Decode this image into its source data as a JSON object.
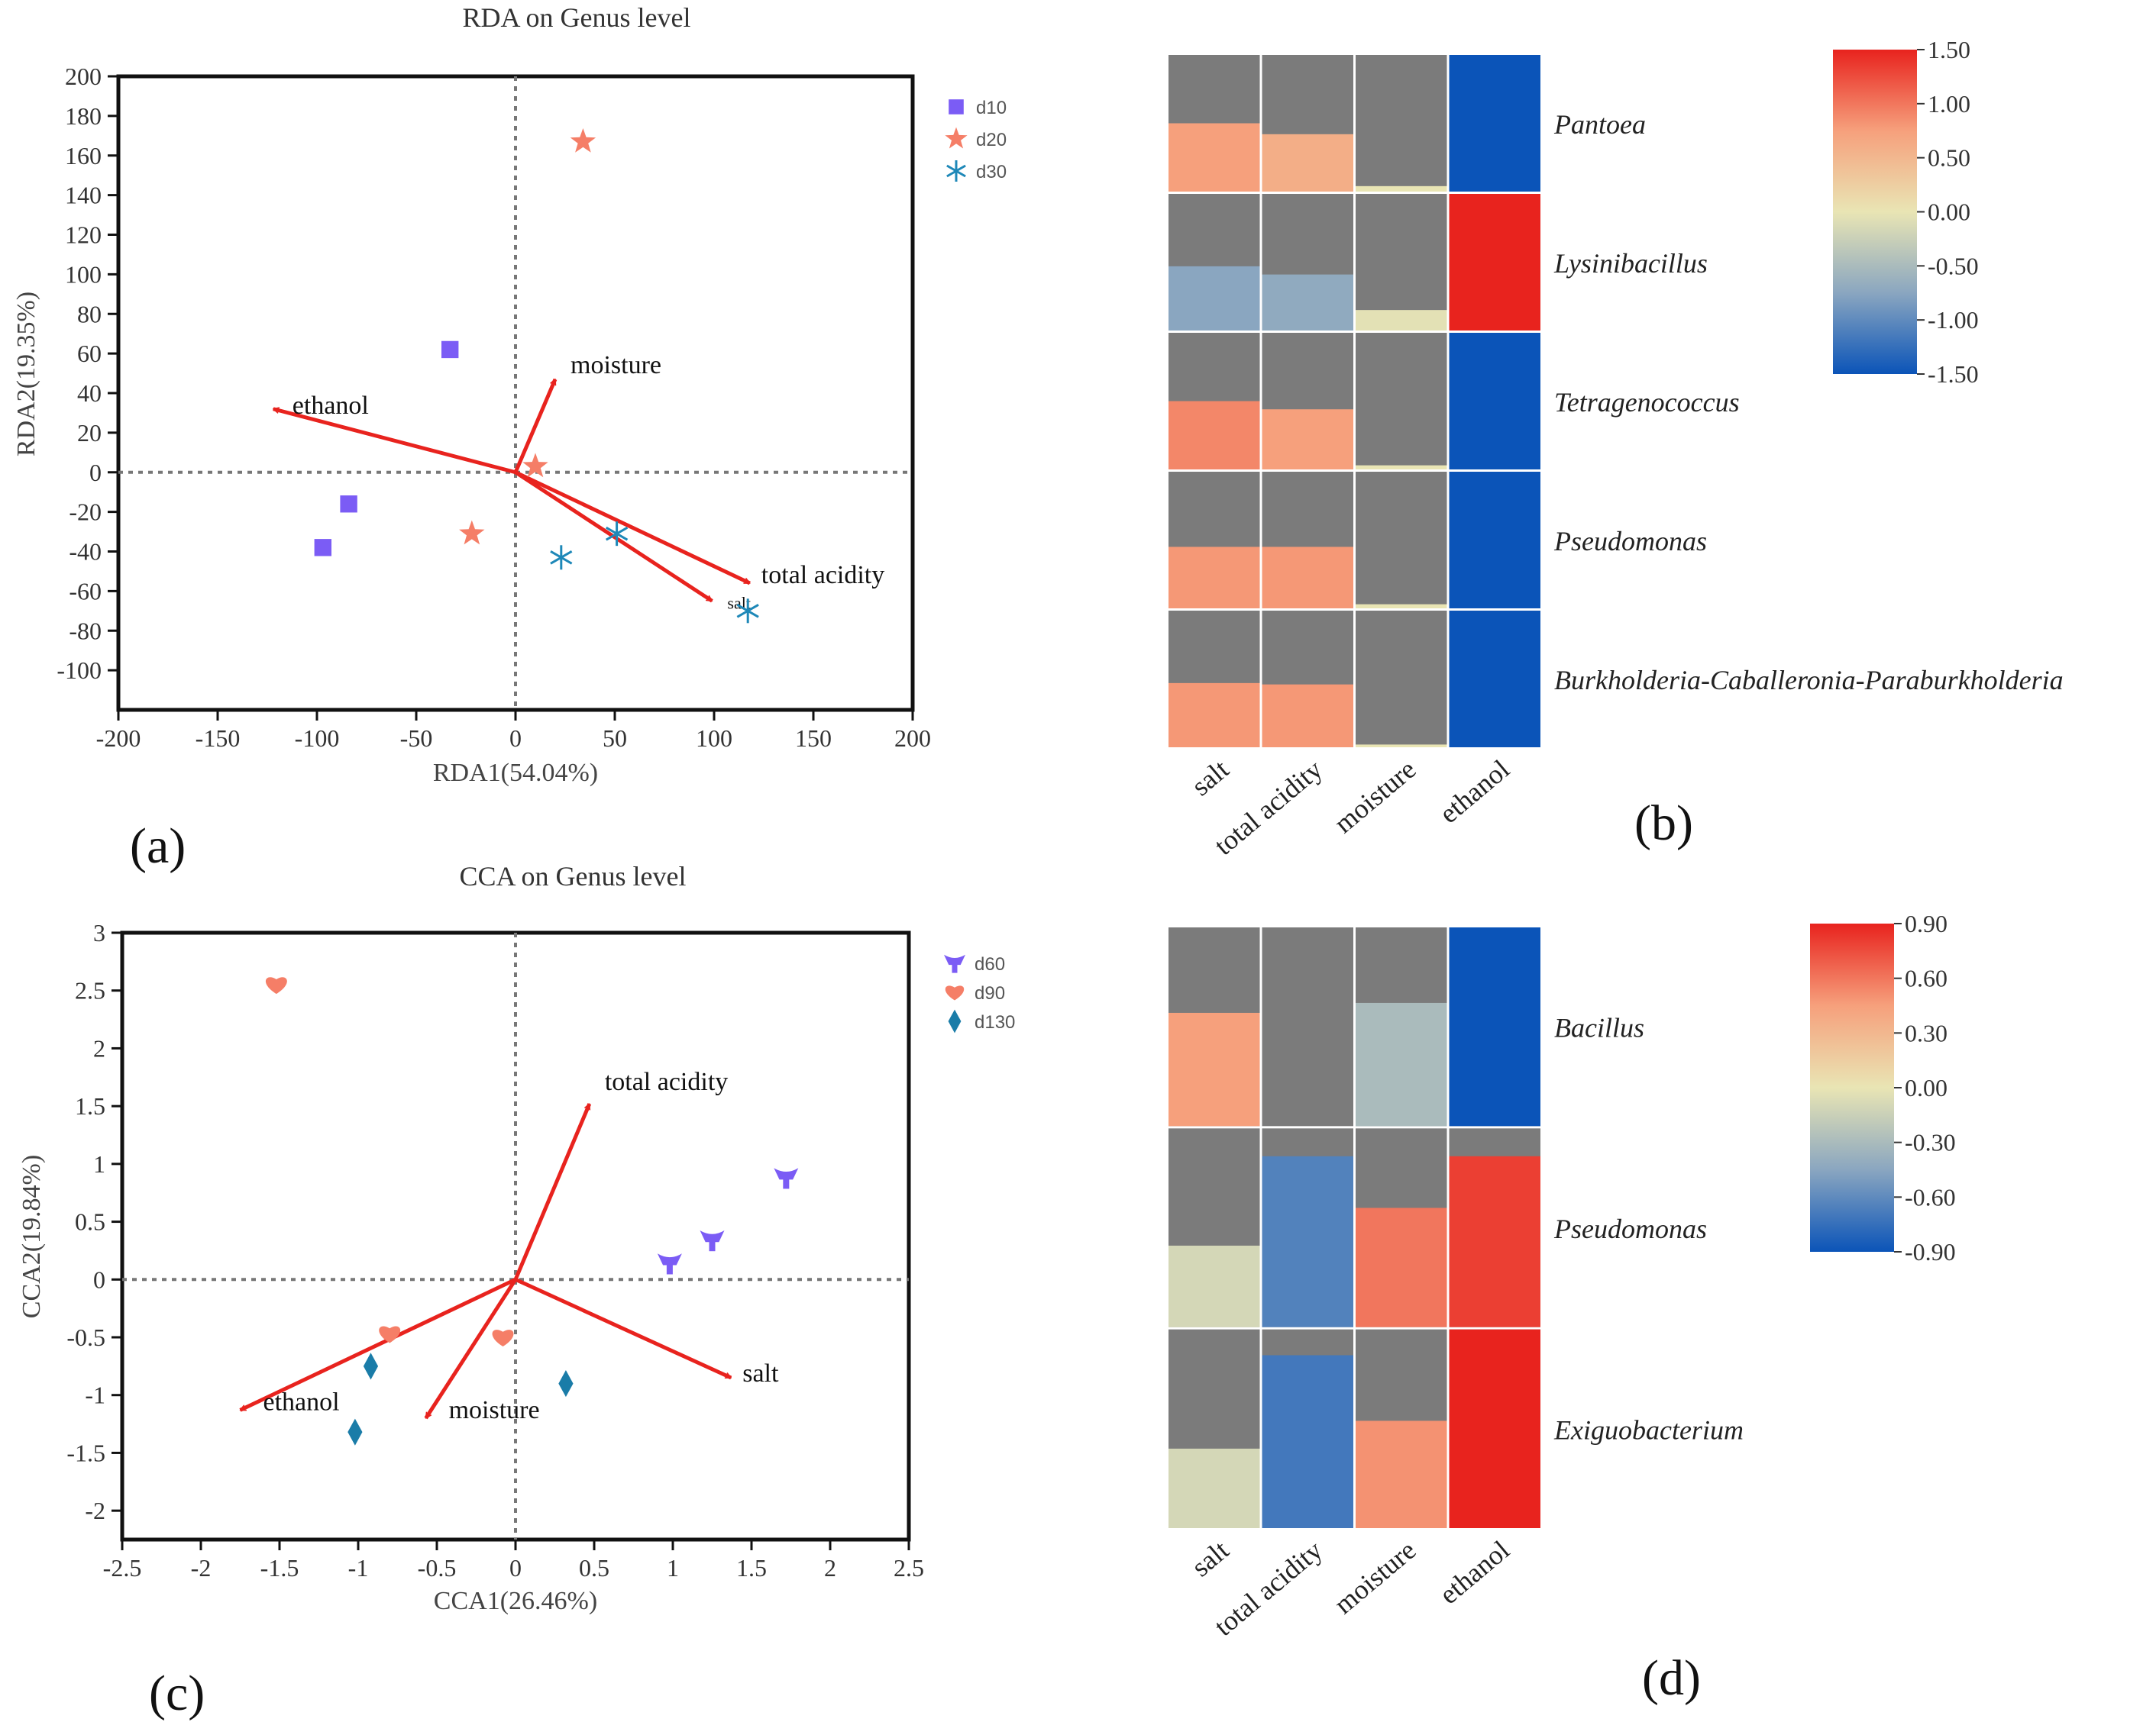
{
  "chart_data": [
    {
      "panel": "(a)",
      "type": "scatter",
      "title": "RDA on Genus level",
      "xlabel": "RDA1(54.04%)",
      "ylabel": "RDA2(19.35%)",
      "xlim": [
        -200,
        200
      ],
      "ylim": [
        -120,
        200
      ],
      "xticks": [
        "-200",
        "-150",
        "-100",
        "-50",
        "0",
        "50",
        "100",
        "150",
        "200"
      ],
      "yticks": [
        "200",
        "180",
        "160",
        "140",
        "120",
        "100",
        "80",
        "60",
        "40",
        "20",
        "0",
        "-20",
        "-40",
        "-60",
        "-80",
        "-100"
      ],
      "series": [
        {
          "name": "d10",
          "marker": "square",
          "color": "#7b5cf5",
          "points": [
            [
              -33,
              62
            ],
            [
              -84,
              -16
            ],
            [
              -97,
              -38
            ]
          ]
        },
        {
          "name": "d20",
          "marker": "star",
          "color": "#f57e67",
          "points": [
            [
              34,
              167
            ],
            [
              10,
              3
            ],
            [
              -22,
              -31
            ]
          ]
        },
        {
          "name": "d30",
          "marker": "asterisk",
          "color": "#1e88b8",
          "points": [
            [
              51,
              -31
            ],
            [
              23,
              -43
            ],
            [
              117,
              -70
            ]
          ]
        }
      ],
      "arrows": [
        {
          "label": "ethanol",
          "x": -122,
          "y": 32
        },
        {
          "label": "moisture",
          "x": 20,
          "y": 47
        },
        {
          "label": "total acidity",
          "x": 118,
          "y": -56
        },
        {
          "label": "salt",
          "x": 99,
          "y": -65
        }
      ],
      "arrow_color": "#e8231e"
    },
    {
      "panel": "(b)",
      "type": "heatmap",
      "columns": [
        "salt",
        "total acidity",
        "moisture",
        "ethanol"
      ],
      "rows": [
        "Pantoea",
        "Lysinibacillus",
        "Tetragenococcus",
        "Pseudomonas",
        "Burkholderia-Caballeronia-Paraburkholderia"
      ],
      "fill_fraction": [
        [
          0.5,
          0.42,
          0.04,
          1.0
        ],
        [
          0.47,
          0.41,
          0.15,
          1.0
        ],
        [
          0.5,
          0.44,
          0.03,
          1.0
        ],
        [
          0.45,
          0.45,
          0.03,
          1.0
        ],
        [
          0.47,
          0.46,
          0.02,
          1.0
        ]
      ],
      "values": [
        [
          0.75,
          0.6,
          0.0,
          -1.5
        ],
        [
          -0.75,
          -0.7,
          -0.05,
          1.5
        ],
        [
          0.9,
          0.75,
          0.0,
          -1.5
        ],
        [
          0.8,
          0.8,
          0.0,
          -1.5
        ],
        [
          0.8,
          0.8,
          0.0,
          -1.5
        ]
      ],
      "colorbar": {
        "min": -1.5,
        "max": 1.5,
        "ticks": [
          "1.50",
          "1.00",
          "0.50",
          "0.00",
          "-0.50",
          "-1.00",
          "-1.50"
        ]
      }
    },
    {
      "panel": "(c)",
      "type": "scatter",
      "title": "CCA on Genus level",
      "xlabel": "CCA1(26.46%)",
      "ylabel": "CCA2(19.84%)",
      "xlim": [
        -2.5,
        2.5
      ],
      "ylim": [
        -2.25,
        3
      ],
      "xticks": [
        "-2.5",
        "-2",
        "-1.5",
        "-1",
        "-0.5",
        "0",
        "0.5",
        "1",
        "1.5",
        "2",
        "2.5"
      ],
      "yticks": [
        "3",
        "2.5",
        "2",
        "1.5",
        "1",
        "0.5",
        "0",
        "-0.5",
        "-1",
        "-1.5",
        "-2"
      ],
      "series": [
        {
          "name": "d60",
          "marker": "tri",
          "color": "#7b5cf5",
          "points": [
            [
              1.72,
              0.88
            ],
            [
              1.25,
              0.34
            ],
            [
              0.98,
              0.14
            ]
          ]
        },
        {
          "name": "d90",
          "marker": "heart",
          "color": "#f57e67",
          "points": [
            [
              -1.52,
              2.55
            ],
            [
              -0.8,
              -0.47
            ],
            [
              -0.08,
              -0.5
            ]
          ]
        },
        {
          "name": "d130",
          "marker": "diamond",
          "color": "#1a7ca8",
          "points": [
            [
              -0.92,
              -0.75
            ],
            [
              0.32,
              -0.9
            ],
            [
              -1.02,
              -1.32
            ]
          ]
        }
      ],
      "arrows": [
        {
          "label": "total acidity",
          "x": 0.47,
          "y": 1.52
        },
        {
          "label": "salt",
          "x": 1.37,
          "y": -0.85
        },
        {
          "label": "ethanol",
          "x": -1.75,
          "y": -1.13
        },
        {
          "label": "moisture",
          "x": -0.57,
          "y": -1.2
        }
      ],
      "arrow_color": "#e8231e"
    },
    {
      "panel": "(d)",
      "type": "heatmap",
      "columns": [
        "salt",
        "total acidity",
        "moisture",
        "ethanol"
      ],
      "rows": [
        "Bacillus",
        "Pseudomonas",
        "Exiguobacterium"
      ],
      "fill_fraction": [
        [
          0.57,
          0.0,
          0.62,
          1.0
        ],
        [
          0.41,
          0.86,
          0.6,
          0.86
        ],
        [
          0.4,
          0.87,
          0.54,
          1.0
        ]
      ],
      "values": [
        [
          0.45,
          0.0,
          -0.3,
          -0.9
        ],
        [
          -0.1,
          -0.65,
          0.6,
          0.8
        ],
        [
          -0.1,
          -0.7,
          0.5,
          0.9
        ]
      ],
      "colorbar": {
        "min": -0.9,
        "max": 0.9,
        "ticks": [
          "0.90",
          "0.60",
          "0.30",
          "0.00",
          "-0.30",
          "-0.60",
          "-0.90"
        ]
      }
    }
  ],
  "labels": {
    "a": "(a)",
    "b": "(b)",
    "c": "(c)",
    "d": "(d)"
  }
}
